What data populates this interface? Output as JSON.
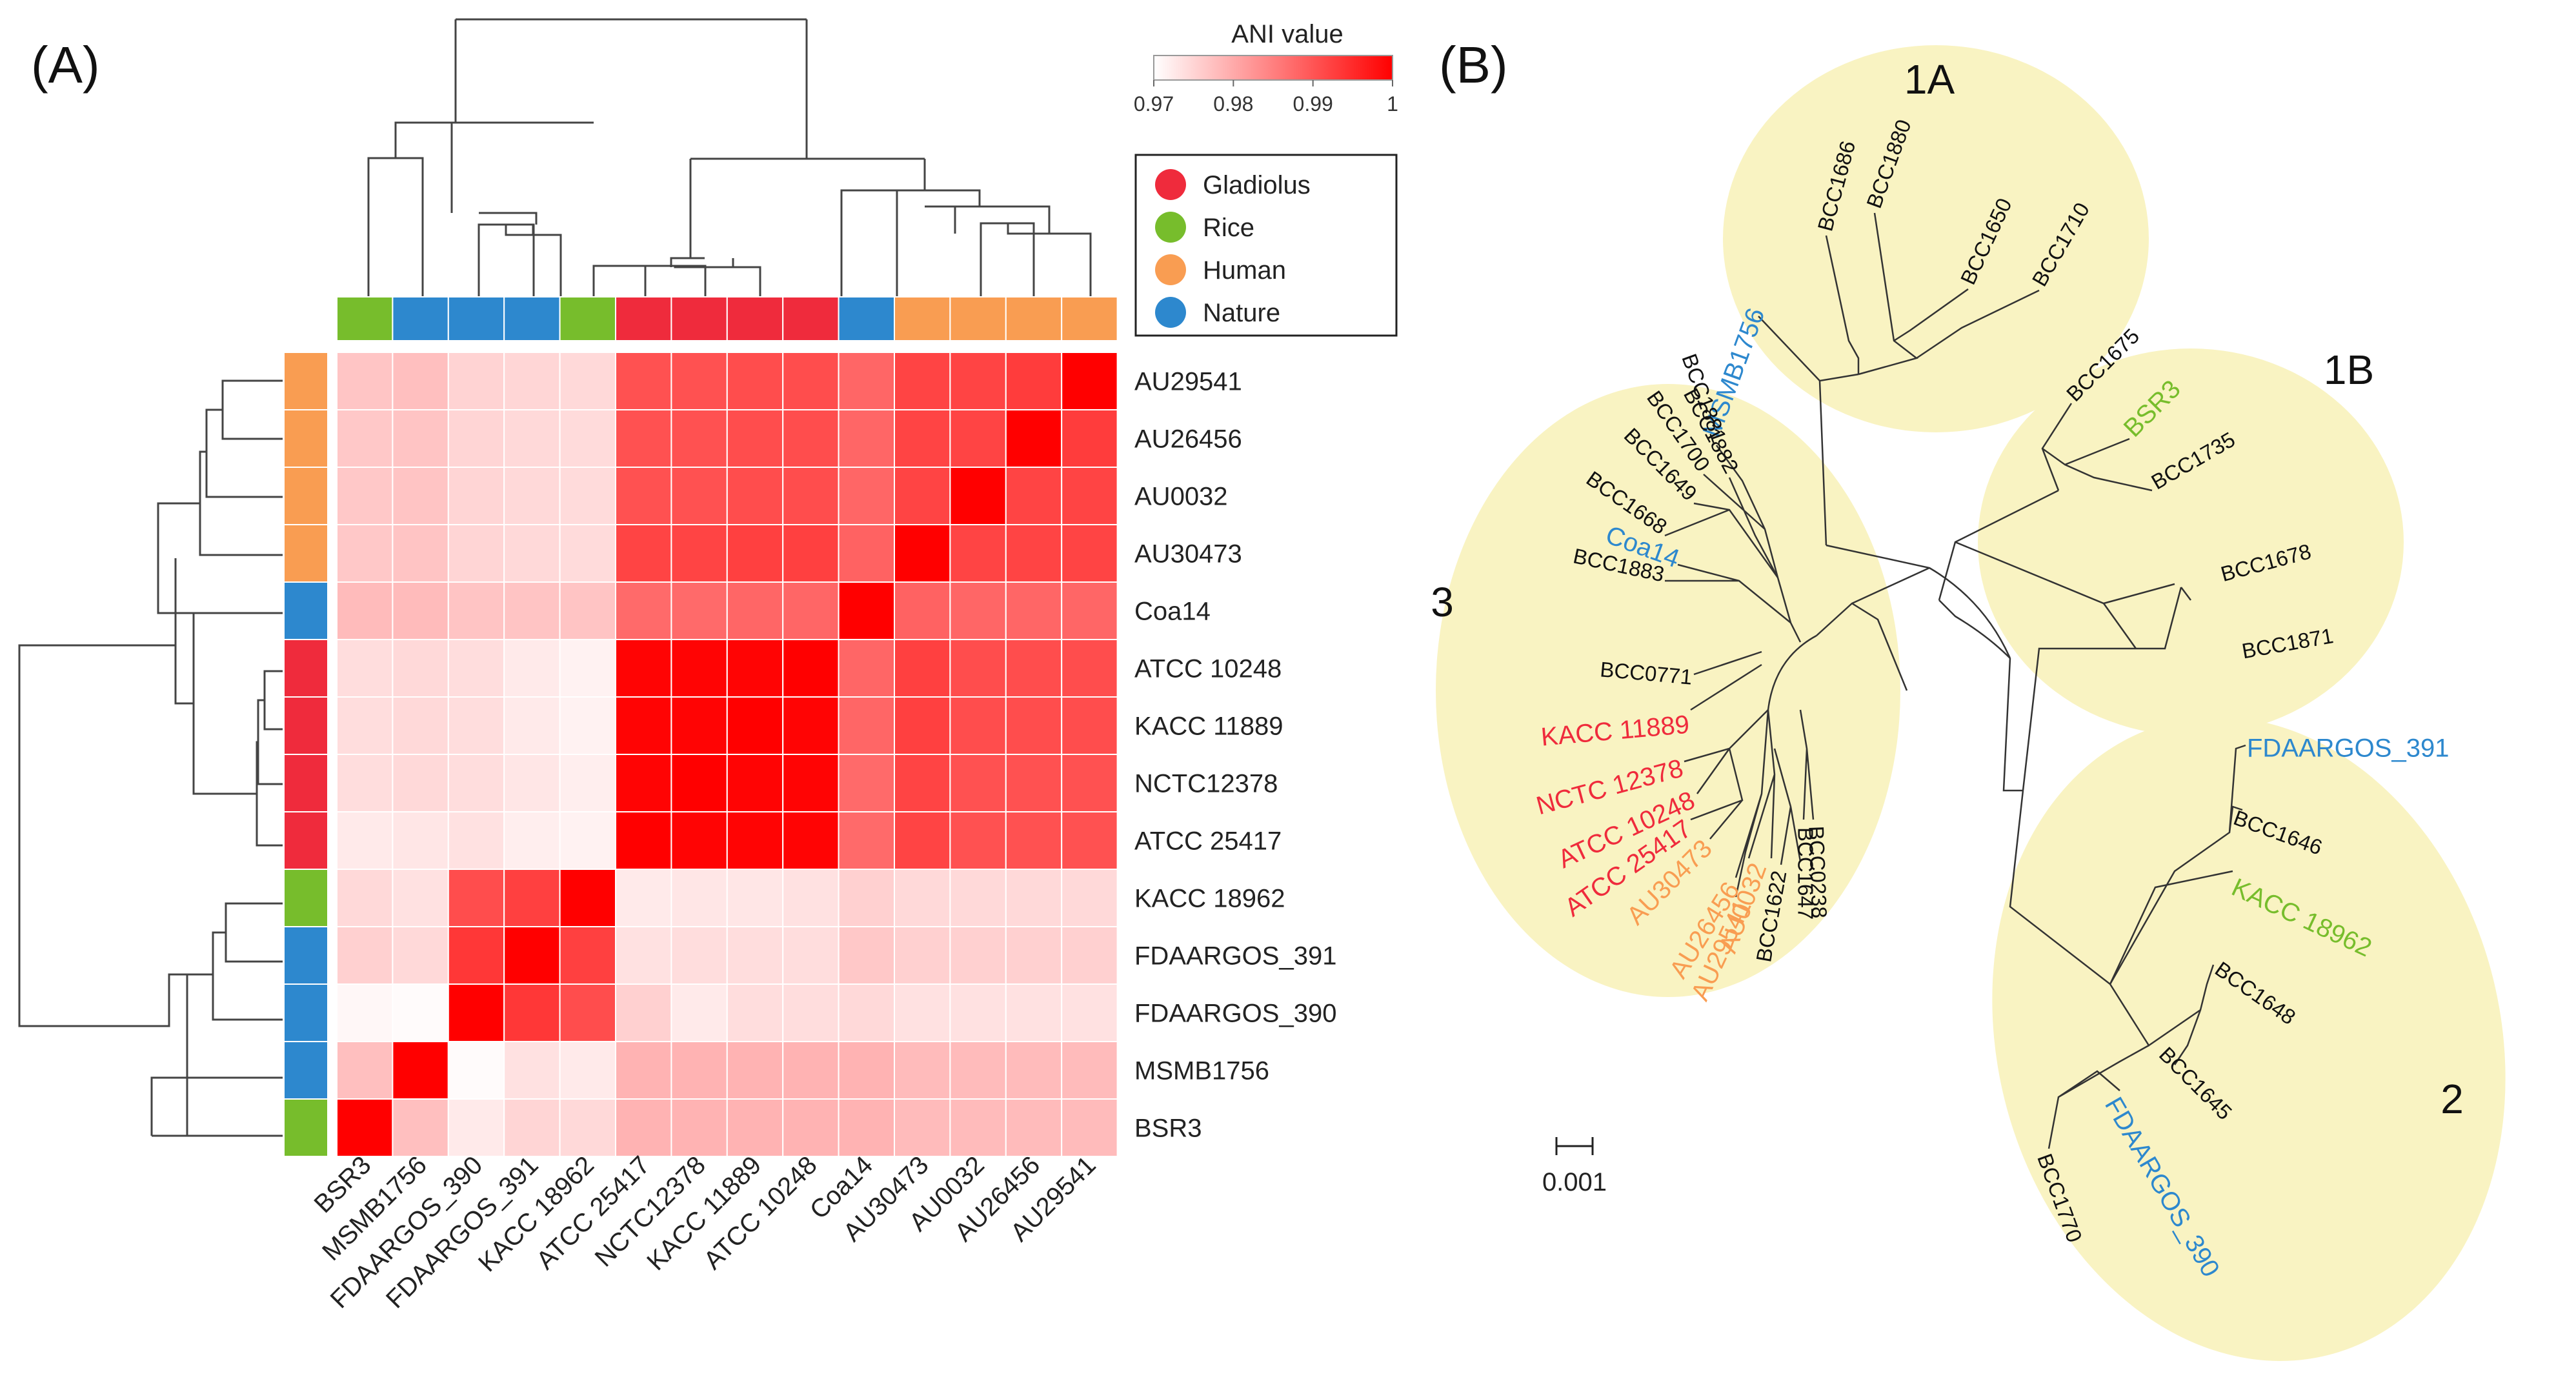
{
  "colors": {
    "Gladiolus": "#ef2b3c",
    "Rice": "#77bd2c",
    "Human": "#f99d52",
    "Nature": "#2d88ce",
    "Other": "#111111",
    "heat_low": "#ffffff",
    "heat_high": "#ff0000",
    "clade_fill": "#f9f3c2"
  },
  "panel_a": {
    "label": "(A)",
    "colorbar": {
      "title": "ANI value",
      "min": 0.97,
      "max": 1,
      "ticks": [
        "0.97",
        "0.98",
        "0.99",
        "1"
      ]
    },
    "legend": [
      {
        "label": "Gladiolus",
        "color_key": "Gladiolus"
      },
      {
        "label": "Rice",
        "color_key": "Rice"
      },
      {
        "label": "Human",
        "color_key": "Human"
      },
      {
        "label": "Nature",
        "color_key": "Nature"
      }
    ]
  },
  "chart_data": [
    {
      "type": "heatmap",
      "title": "ANI value",
      "rows": [
        "AU29541",
        "AU26456",
        "AU0032",
        "AU30473",
        "Coa14",
        "ATCC 10248",
        "KACC 11889",
        "NCTC12378",
        "ATCC 25417",
        "KACC 18962",
        "FDAARGOS_391",
        "FDAARGOS_390",
        "MSMB1756",
        "BSR3"
      ],
      "columns": [
        "BSR3",
        "MSMB1756",
        "FDAARGOS_390",
        "FDAARGOS_391",
        "KACC 18962",
        "ATCC 25417",
        "NCTC12378",
        "KACC 11889",
        "ATCC 10248",
        "Coa14",
        "AU30473",
        "AU0032",
        "AU26456",
        "AU29541"
      ],
      "row_source": [
        "Human",
        "Human",
        "Human",
        "Human",
        "Nature",
        "Gladiolus",
        "Gladiolus",
        "Gladiolus",
        "Gladiolus",
        "Rice",
        "Nature",
        "Nature",
        "Nature",
        "Rice"
      ],
      "column_source": [
        "Rice",
        "Nature",
        "Nature",
        "Nature",
        "Rice",
        "Gladiolus",
        "Gladiolus",
        "Gladiolus",
        "Gladiolus",
        "Nature",
        "Human",
        "Human",
        "Human",
        "Human"
      ],
      "color_scale": {
        "min": 0.97,
        "max": 1.0
      },
      "values": [
        [
          0.9768,
          0.9775,
          0.9752,
          0.9748,
          0.9745,
          0.9905,
          0.9905,
          0.991,
          0.991,
          0.988,
          0.992,
          0.992,
          0.993,
          1.0
        ],
        [
          0.9765,
          0.977,
          0.975,
          0.9745,
          0.9742,
          0.9905,
          0.9905,
          0.991,
          0.991,
          0.988,
          0.992,
          0.992,
          1.0,
          0.993
        ],
        [
          0.9765,
          0.977,
          0.975,
          0.9745,
          0.9742,
          0.9905,
          0.9905,
          0.991,
          0.991,
          0.988,
          0.992,
          1.0,
          0.992,
          0.992
        ],
        [
          0.9765,
          0.977,
          0.975,
          0.9745,
          0.9742,
          0.992,
          0.992,
          0.9925,
          0.9925,
          0.9885,
          1.0,
          0.992,
          0.992,
          0.992
        ],
        [
          0.978,
          0.978,
          0.977,
          0.977,
          0.977,
          0.9875,
          0.9875,
          0.988,
          0.988,
          1.0,
          0.9885,
          0.988,
          0.988,
          0.988
        ],
        [
          0.974,
          0.9745,
          0.974,
          0.9725,
          0.9715,
          0.9995,
          0.9995,
          0.9995,
          1.0,
          0.988,
          0.9925,
          0.991,
          0.991,
          0.991
        ],
        [
          0.974,
          0.9745,
          0.974,
          0.9725,
          0.9715,
          0.9995,
          0.9995,
          1.0,
          0.9995,
          0.988,
          0.9925,
          0.991,
          0.991,
          0.991
        ],
        [
          0.974,
          0.9745,
          0.974,
          0.973,
          0.972,
          0.9995,
          1.0,
          0.9995,
          0.9995,
          0.9875,
          0.992,
          0.9905,
          0.9905,
          0.9905
        ],
        [
          0.9725,
          0.973,
          0.9735,
          0.972,
          0.9715,
          1.0,
          0.9995,
          0.9995,
          0.9995,
          0.9875,
          0.992,
          0.9905,
          0.9905,
          0.9905
        ],
        [
          0.9745,
          0.9735,
          0.991,
          0.9925,
          1.0,
          0.9725,
          0.973,
          0.973,
          0.9735,
          0.9755,
          0.9745,
          0.9745,
          0.9745,
          0.9745
        ],
        [
          0.9755,
          0.9745,
          0.9935,
          1.0,
          0.9925,
          0.9735,
          0.974,
          0.974,
          0.974,
          0.9765,
          0.9755,
          0.9755,
          0.9755,
          0.9755
        ],
        [
          0.971,
          0.9705,
          1.0,
          0.9935,
          0.991,
          0.9755,
          0.9725,
          0.974,
          0.974,
          0.9745,
          0.9735,
          0.9735,
          0.9735,
          0.9735
        ],
        [
          0.9775,
          1.0,
          0.9705,
          0.9735,
          0.9725,
          0.979,
          0.979,
          0.979,
          0.979,
          0.979,
          0.978,
          0.978,
          0.978,
          0.978
        ],
        [
          1.0,
          0.9775,
          0.9725,
          0.975,
          0.9745,
          0.979,
          0.979,
          0.979,
          0.979,
          0.979,
          0.978,
          0.978,
          0.978,
          0.978
        ]
      ]
    },
    {
      "type": "phylogenetic-tree",
      "label": "(B)",
      "scale_bar": "0.001",
      "clades": [
        "1A",
        "1B",
        "2",
        "3"
      ],
      "tips": [
        {
          "name": "MSMB1756",
          "source": "Nature",
          "clade": "1A"
        },
        {
          "name": "BCC1686",
          "source": "Other",
          "clade": "1A"
        },
        {
          "name": "BCC1880",
          "source": "Other",
          "clade": "1A"
        },
        {
          "name": "BCC1650",
          "source": "Other",
          "clade": "1A"
        },
        {
          "name": "BCC1710",
          "source": "Other",
          "clade": "1A"
        },
        {
          "name": "BCC1675",
          "source": "Other",
          "clade": "1B"
        },
        {
          "name": "BSR3",
          "source": "Rice",
          "clade": "1B"
        },
        {
          "name": "BCC1735",
          "source": "Other",
          "clade": "1B"
        },
        {
          "name": "BCC1678",
          "source": "Other",
          "clade": "1B"
        },
        {
          "name": "BCC1871",
          "source": "Other",
          "clade": "1B"
        },
        {
          "name": "FDAARGOS_391",
          "source": "Nature",
          "clade": "2"
        },
        {
          "name": "BCC1646",
          "source": "Other",
          "clade": "2"
        },
        {
          "name": "KACC 18962",
          "source": "Rice",
          "clade": "2"
        },
        {
          "name": "BCC1648",
          "source": "Other",
          "clade": "2"
        },
        {
          "name": "BCC1645",
          "source": "Other",
          "clade": "2"
        },
        {
          "name": "FDAARGOS_390",
          "source": "Nature",
          "clade": "2"
        },
        {
          "name": "BCC1770",
          "source": "Other",
          "clade": "2"
        },
        {
          "name": "BCC1881",
          "source": "Other",
          "clade": "3"
        },
        {
          "name": "BCC1882",
          "source": "Other",
          "clade": "3"
        },
        {
          "name": "BCC1700",
          "source": "Other",
          "clade": "3"
        },
        {
          "name": "BCC1649",
          "source": "Other",
          "clade": "3"
        },
        {
          "name": "BCC1668",
          "source": "Other",
          "clade": "3"
        },
        {
          "name": "Coa14",
          "source": "Nature",
          "clade": "3"
        },
        {
          "name": "BCC1883",
          "source": "Other",
          "clade": "3"
        },
        {
          "name": "BCC0771",
          "source": "Other",
          "clade": "3"
        },
        {
          "name": "KACC 11889",
          "source": "Gladiolus",
          "clade": "3"
        },
        {
          "name": "NCTC 12378",
          "source": "Gladiolus",
          "clade": "3"
        },
        {
          "name": "ATCC 10248",
          "source": "Gladiolus",
          "clade": "3"
        },
        {
          "name": "ATCC 25417",
          "source": "Gladiolus",
          "clade": "3"
        },
        {
          "name": "AU30473",
          "source": "Human",
          "clade": "3"
        },
        {
          "name": "AU26456",
          "source": "Human",
          "clade": "3"
        },
        {
          "name": "AU29541",
          "source": "Human",
          "clade": "3"
        },
        {
          "name": "AU0032",
          "source": "Human",
          "clade": "3"
        },
        {
          "name": "BCC1622",
          "source": "Other",
          "clade": "3"
        },
        {
          "name": "BCC1647",
          "source": "Other",
          "clade": "3"
        },
        {
          "name": "BCC0238",
          "source": "Other",
          "clade": "3"
        }
      ]
    }
  ]
}
